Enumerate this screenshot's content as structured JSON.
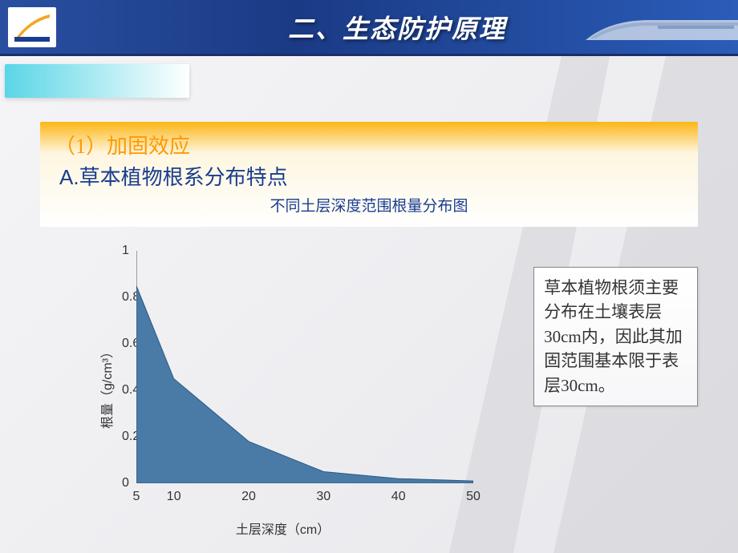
{
  "header": {
    "title": "二、生态防护原理"
  },
  "section": {
    "line1": "（1）加固效应",
    "line2": "A.草本植物根系分布特点",
    "line3": "不同土层深度范围根量分布图"
  },
  "chart": {
    "type": "area",
    "x_values": [
      5,
      10,
      20,
      30,
      40,
      50
    ],
    "y_values": [
      0.85,
      0.45,
      0.18,
      0.05,
      0.02,
      0.01
    ],
    "fill_color": "#4a7ba6",
    "stroke_color": "#333333",
    "background_color": "#ffffff",
    "axis_color": "#808080",
    "tick_color": "#808080",
    "xlim": [
      5,
      50
    ],
    "ylim": [
      0,
      1
    ],
    "x_ticks": [
      5,
      10,
      20,
      30,
      40,
      50
    ],
    "y_ticks": [
      0,
      0.2,
      0.4,
      0.6,
      0.8,
      1
    ],
    "x_label": "土层深度（cm）",
    "y_label": "根量（g/cm³）",
    "label_fontsize": 16,
    "tick_fontsize": 16
  },
  "note": {
    "text": "草本植物根须主要分布在土壤表层30cm内，因此其加固范围基本限于表层30cm。"
  },
  "tick_labels": {
    "y0": "0",
    "y1": "0.2",
    "y2": "0.4",
    "y3": "0.6",
    "y4": "0.8",
    "y5": "1",
    "x0": "5",
    "x1": "10",
    "x2": "20",
    "x3": "30",
    "x4": "40",
    "x5": "50"
  }
}
